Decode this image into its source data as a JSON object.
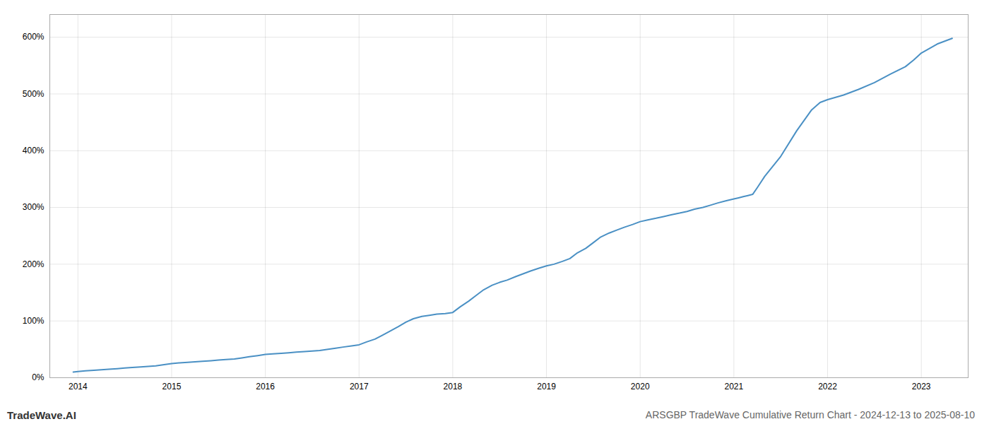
{
  "chart_data": {
    "type": "line",
    "title": "ARSGBP TradeWave Cumulative Return Chart - 2024-12-13 to 2025-08-10",
    "annotations": [
      "TradeWave.AI"
    ],
    "color": "#4a90c4",
    "grid": true,
    "x": [
      2013.95,
      2014.0,
      2014.08,
      2014.17,
      2014.25,
      2014.33,
      2014.42,
      2014.5,
      2014.58,
      2014.67,
      2014.75,
      2014.83,
      2014.92,
      2015.0,
      2015.08,
      2015.17,
      2015.25,
      2015.33,
      2015.42,
      2015.5,
      2015.58,
      2015.67,
      2015.75,
      2015.83,
      2015.92,
      2016.0,
      2016.08,
      2016.17,
      2016.25,
      2016.33,
      2016.42,
      2016.5,
      2016.58,
      2016.67,
      2016.75,
      2016.83,
      2016.92,
      2017.0,
      2017.08,
      2017.17,
      2017.25,
      2017.33,
      2017.42,
      2017.5,
      2017.58,
      2017.67,
      2017.75,
      2017.83,
      2017.92,
      2018.0,
      2018.08,
      2018.17,
      2018.25,
      2018.33,
      2018.42,
      2018.5,
      2018.58,
      2018.67,
      2018.75,
      2018.83,
      2018.92,
      2019.0,
      2019.08,
      2019.17,
      2019.25,
      2019.33,
      2019.42,
      2019.5,
      2019.58,
      2019.67,
      2019.75,
      2019.83,
      2019.92,
      2020.0,
      2020.08,
      2020.17,
      2020.25,
      2020.33,
      2020.42,
      2020.5,
      2020.58,
      2020.67,
      2020.75,
      2020.83,
      2020.92,
      2021.0,
      2021.05,
      2021.1,
      2021.15,
      2021.2,
      2021.25,
      2021.33,
      2021.5,
      2021.67,
      2021.83,
      2021.92,
      2022.0,
      2022.17,
      2022.33,
      2022.5,
      2022.67,
      2022.83,
      2022.92,
      2023.0,
      2023.17,
      2023.33
    ],
    "values": [
      10,
      11,
      12,
      13,
      14,
      15,
      16,
      17,
      18,
      19,
      20,
      21,
      23,
      25,
      26,
      27,
      28,
      29,
      30,
      31,
      32,
      33,
      35,
      37,
      39,
      41,
      42,
      43,
      44,
      45,
      46,
      47,
      48,
      50,
      52,
      54,
      56,
      58,
      63,
      68,
      75,
      82,
      90,
      98,
      104,
      108,
      110,
      112,
      113,
      115,
      125,
      135,
      145,
      155,
      163,
      168,
      172,
      178,
      183,
      188,
      193,
      197,
      200,
      205,
      210,
      220,
      228,
      238,
      248,
      255,
      260,
      265,
      270,
      275,
      278,
      281,
      284,
      287,
      290,
      293,
      297,
      300,
      304,
      308,
      312,
      315,
      317,
      319,
      321,
      323,
      335,
      355,
      390,
      435,
      472,
      485,
      490,
      498,
      508,
      520,
      535,
      548,
      560,
      572,
      588,
      598
    ],
    "xlim": [
      2013.7,
      2023.5
    ],
    "xticks": [
      2014,
      2015,
      2016,
      2017,
      2018,
      2019,
      2020,
      2021,
      2022,
      2023
    ],
    "ylim": [
      0,
      640
    ],
    "yticks": [
      {
        "value": 0,
        "label": "0%"
      },
      {
        "value": 100,
        "label": "100%"
      },
      {
        "value": 200,
        "label": "200%"
      },
      {
        "value": 300,
        "label": "300%"
      },
      {
        "value": 400,
        "label": "400%"
      },
      {
        "value": 500,
        "label": "500%"
      },
      {
        "value": 600,
        "label": "600%"
      }
    ]
  }
}
